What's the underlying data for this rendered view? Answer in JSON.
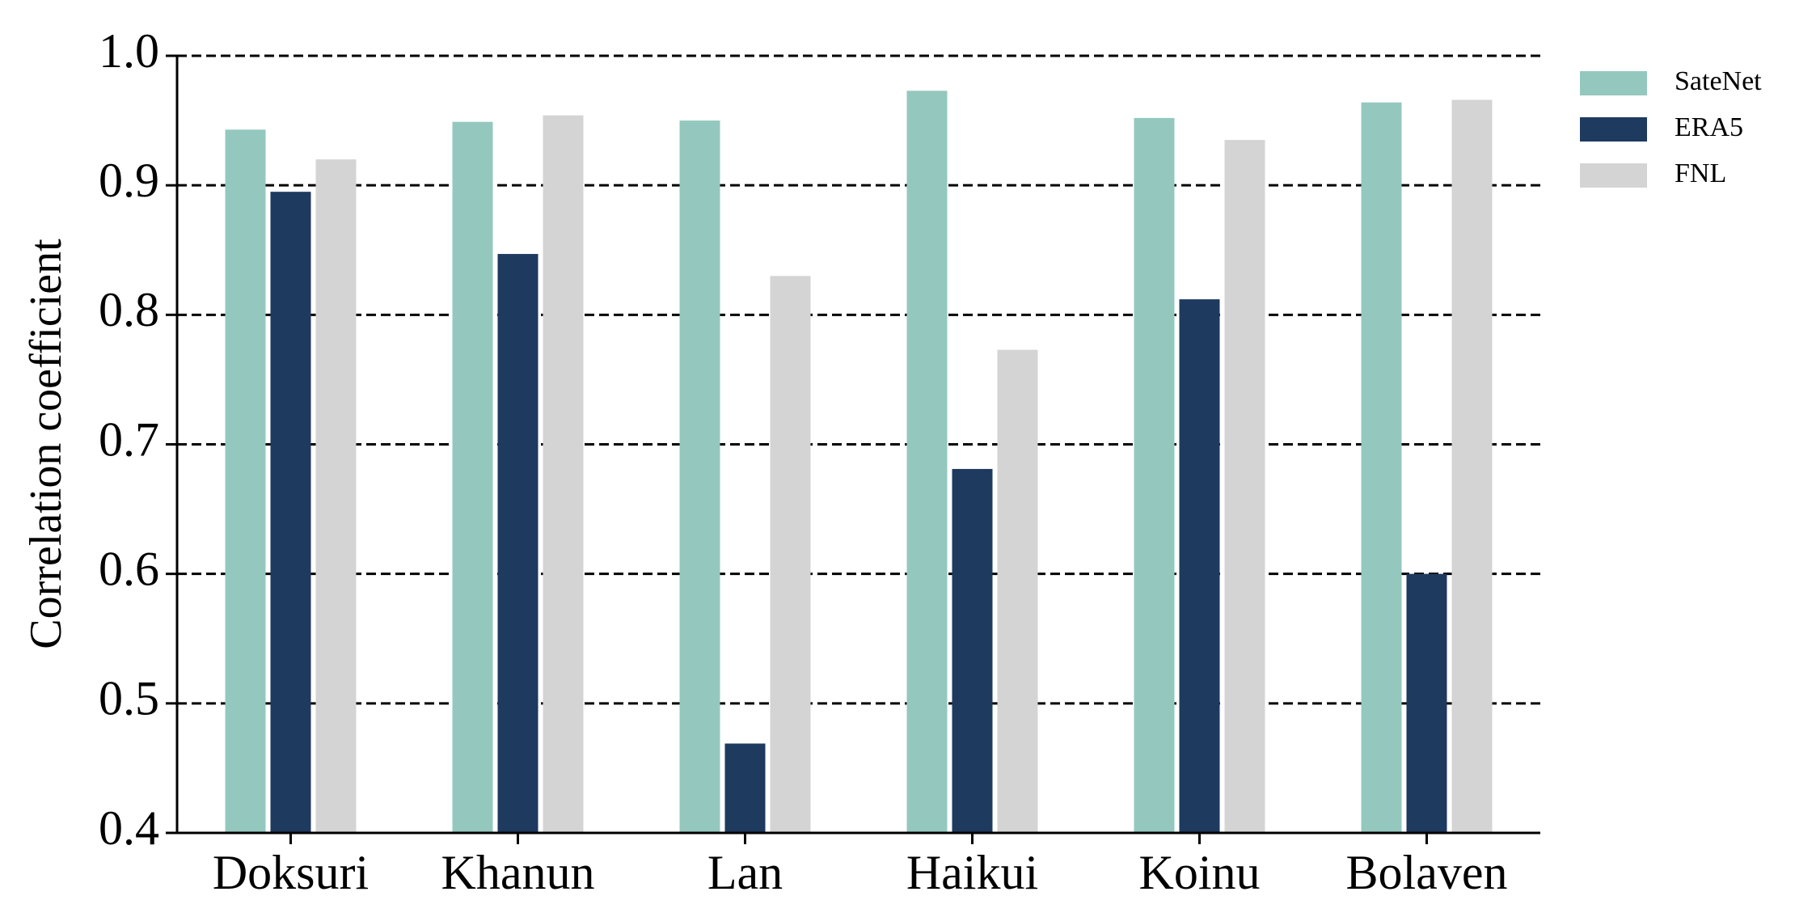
{
  "chart_data": {
    "type": "bar",
    "ylabel": "Correlation coefficient",
    "categories": [
      "Doksuri",
      "Khanun",
      "Lan",
      "Haikui",
      "Koinu",
      "Bolaven"
    ],
    "series": [
      {
        "name": "SateNet",
        "color": "#94c8bf",
        "values": [
          0.943,
          0.949,
          0.95,
          0.973,
          0.952,
          0.964
        ]
      },
      {
        "name": "ERA5",
        "color": "#1e3a5f",
        "values": [
          0.895,
          0.847,
          0.469,
          0.681,
          0.812,
          0.6
        ]
      },
      {
        "name": "FNL",
        "color": "#d4d4d4",
        "values": [
          0.92,
          0.954,
          0.83,
          0.773,
          0.935,
          0.966
        ]
      }
    ],
    "ylim": [
      0.4,
      1.0
    ],
    "yticks": [
      0.4,
      0.5,
      0.6,
      0.7,
      0.8,
      0.9,
      {
        "value": 1.0,
        "label": "1.0"
      }
    ],
    "grid": true,
    "legend": "outside-right"
  }
}
